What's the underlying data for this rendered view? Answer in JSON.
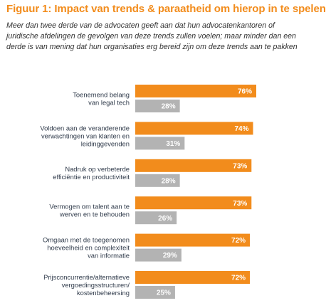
{
  "figure": {
    "title": "Figuur 1: Impact van trends & paraatheid om hierop in te spelen",
    "subtitle": "Meer dan twee derde van de advocaten geeft aan dat hun advocatenkantoren of juridische afdelingen de gevolgen van deze trends zullen voelen; maar minder dan een derde is van mening dat hun organisaties erg bereid zijn om deze trends aan te pakken"
  },
  "chart_data": {
    "type": "bar",
    "orientation": "horizontal",
    "categories": [
      [
        "Toenemend belang",
        "van legal tech"
      ],
      [
        "Voldoen aan de veranderende",
        "verwachtingen van klanten en",
        "leidinggevenden"
      ],
      [
        "Nadruk op verbeterde",
        "efficiëntie en productiviteit"
      ],
      [
        "Vermogen om talent aan te",
        "werven en te behouden"
      ],
      [
        "Omgaan met de toegenomen",
        "hoeveelheid en complexiteit",
        "van informatie"
      ],
      [
        "Prijsconcurrentie/alternatieve",
        "vergoedingsstructuren/",
        "kostenbeheersing"
      ]
    ],
    "series": [
      {
        "values": [
          76,
          74,
          73,
          73,
          72,
          72
        ],
        "labels": [
          "76%",
          "74%",
          "73%",
          "73%",
          "72%",
          "72%"
        ]
      },
      {
        "values": [
          28,
          31,
          28,
          26,
          29,
          25
        ],
        "labels": [
          "28%",
          "31%",
          "28%",
          "26%",
          "29%",
          "25%"
        ]
      }
    ],
    "xlim": [
      0,
      100
    ],
    "grid": false,
    "colors": [
      "#f28c1c",
      "#b3b3b3"
    ]
  }
}
